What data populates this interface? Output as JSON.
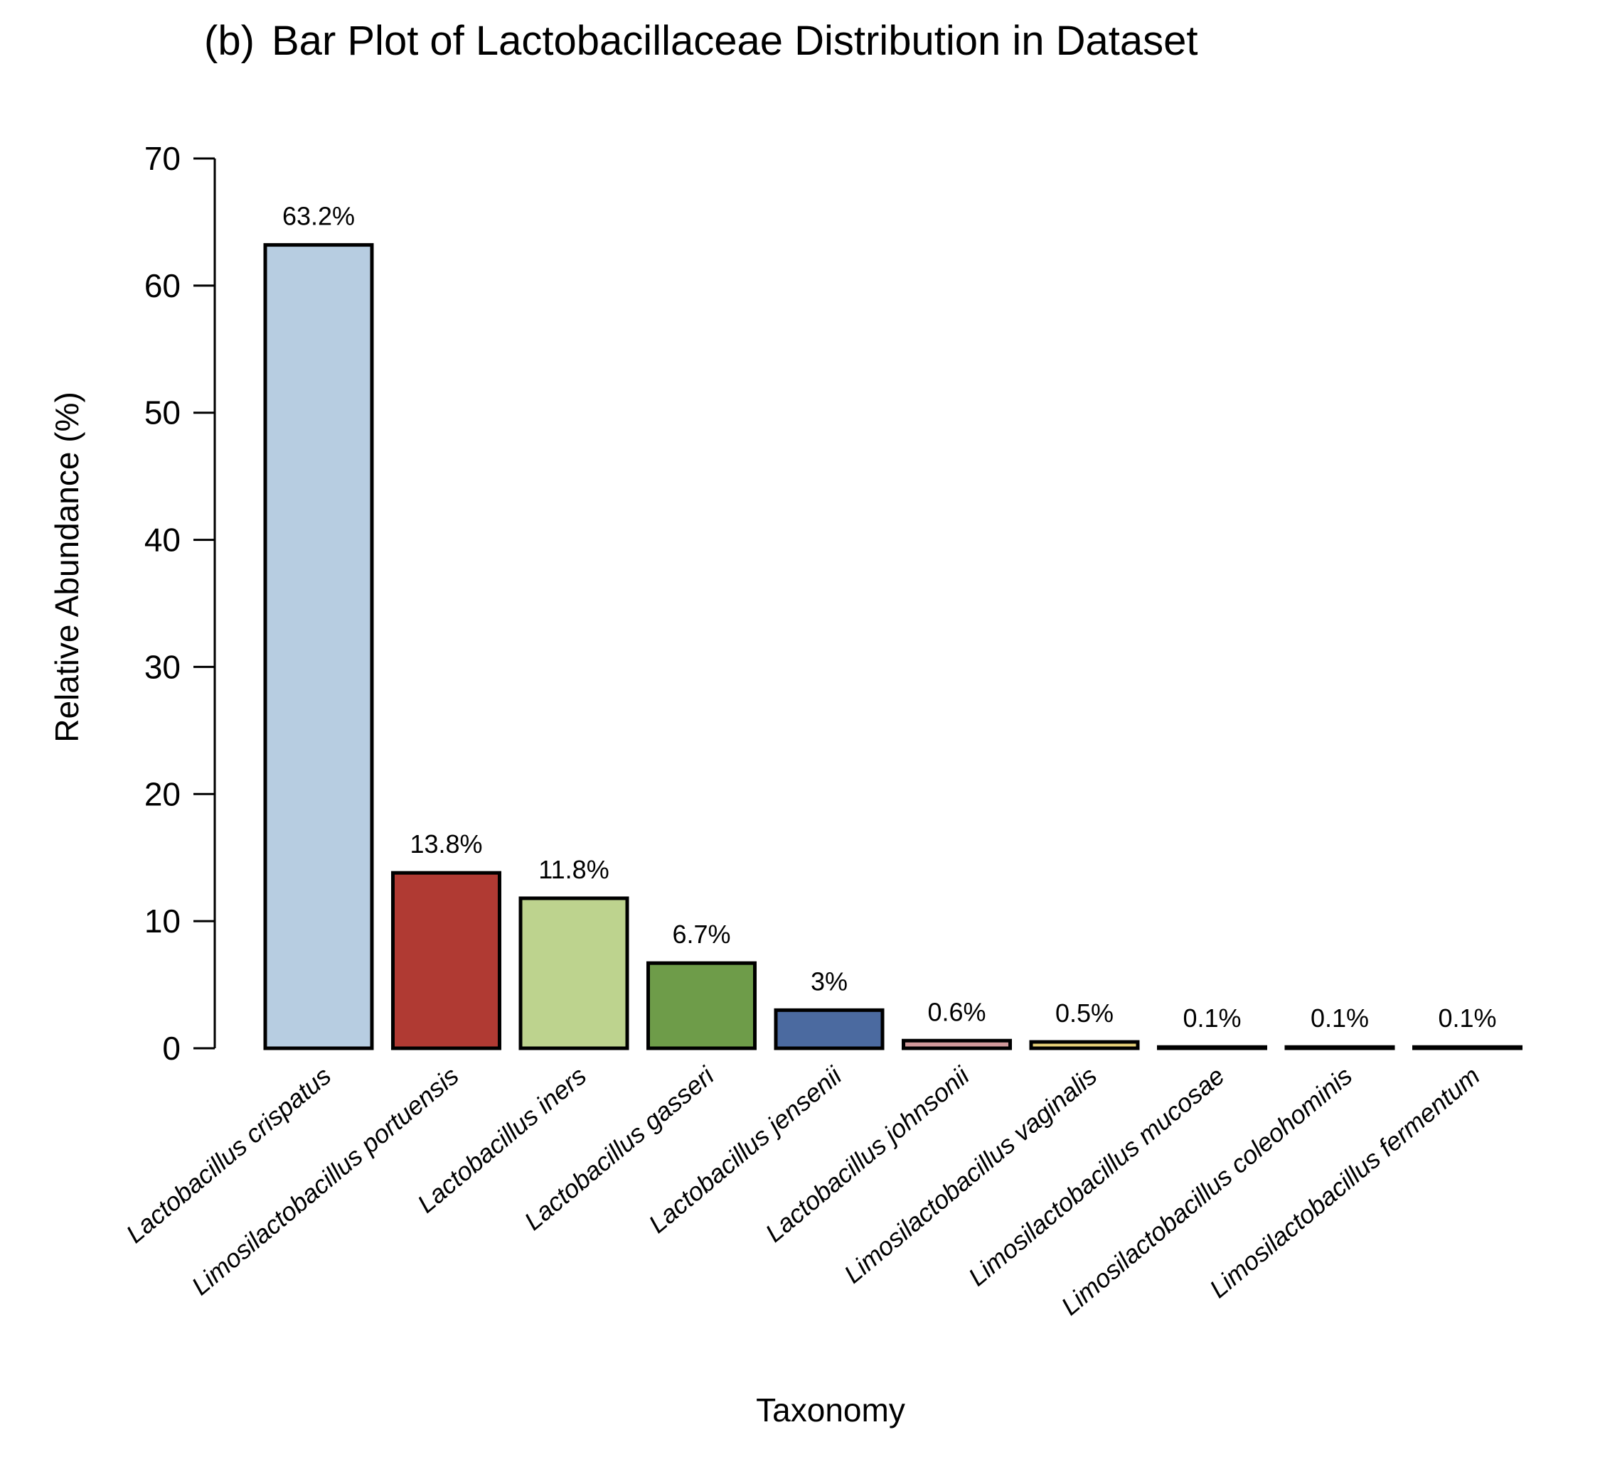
{
  "chart_data": {
    "type": "bar",
    "panel_label": "(b)",
    "title": "Bar Plot of Lactobacillaceae Distribution in Dataset",
    "xlabel": "Taxonomy",
    "ylabel": "Relative Abundance (%)",
    "ylim": [
      0,
      70
    ],
    "yticks": [
      0,
      10,
      20,
      30,
      40,
      50,
      60,
      70
    ],
    "grid": false,
    "categories": [
      "Lactobacillus crispatus",
      "Limosilactobacillus portuensis",
      "Lactobacillus iners",
      "Lactobacillus gasseri",
      "Lactobacillus jensenii",
      "Lactobacillus johnsonii",
      "Limosilactobacillus vaginalis",
      "Limosilactobacillus mucosae",
      "Limosilactobacillus coleohominis",
      "Limosilactobacillus fermentum"
    ],
    "values": [
      63.2,
      13.8,
      11.8,
      6.7,
      3,
      0.6,
      0.5,
      0.1,
      0.1,
      0.1
    ],
    "value_labels": [
      "63.2%",
      "13.8%",
      "11.8%",
      "6.7%",
      "3%",
      "0.6%",
      "0.5%",
      "0.1%",
      "0.1%",
      "0.1%"
    ],
    "colors": [
      "#b7cde1",
      "#b03a33",
      "#bdd38e",
      "#6e9c49",
      "#4b6aa0",
      "#d1999a",
      "#e6cf78",
      "#f1e7b8",
      "#c8b6a2",
      "#9a8f85"
    ]
  }
}
